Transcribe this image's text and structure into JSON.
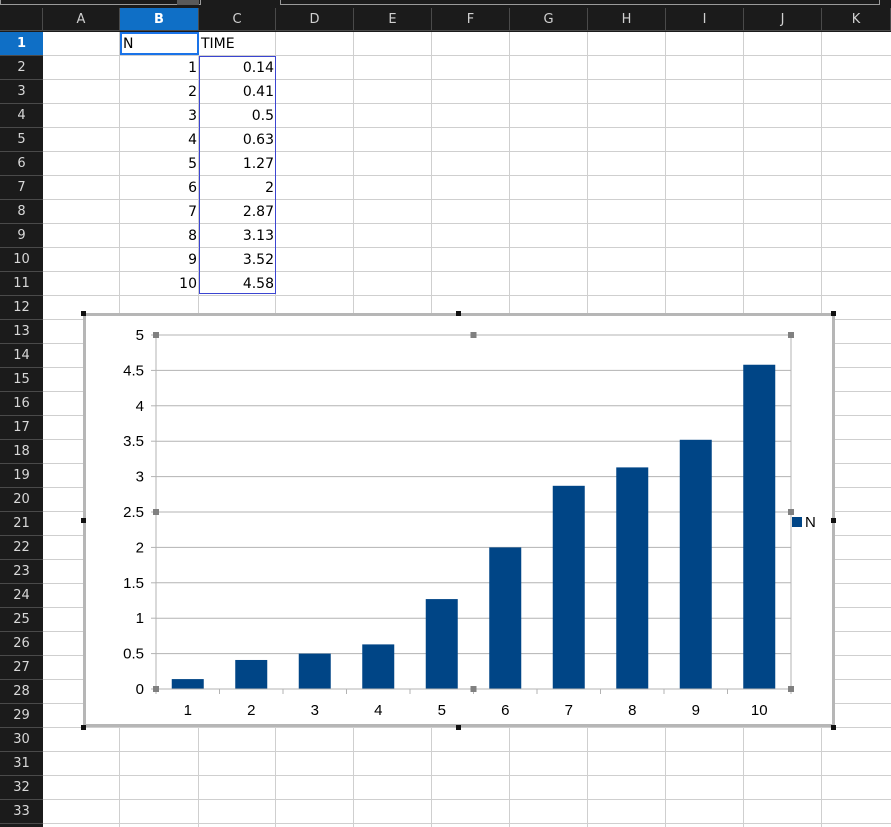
{
  "columns": [
    "A",
    "B",
    "C",
    "D",
    "E",
    "F",
    "G",
    "H",
    "I",
    "J",
    "K"
  ],
  "selected_column": "B",
  "rows": [
    "1",
    "2",
    "3",
    "4",
    "5",
    "6",
    "7",
    "8",
    "9",
    "10",
    "11",
    "12",
    "13",
    "14",
    "15",
    "16",
    "17",
    "18",
    "19",
    "20",
    "21",
    "22",
    "23",
    "24",
    "25",
    "26",
    "27",
    "28",
    "29",
    "30",
    "31",
    "32",
    "33"
  ],
  "selected_row": "1",
  "sheet": {
    "header_n": "N",
    "header_time": "TIME",
    "n_values": [
      "1",
      "2",
      "3",
      "4",
      "5",
      "6",
      "7",
      "8",
      "9",
      "10"
    ],
    "time_values": [
      "0.14",
      "0.41",
      "0.5",
      "0.63",
      "1.27",
      "2",
      "2.87",
      "3.13",
      "3.52",
      "4.58"
    ]
  },
  "chart_data": {
    "type": "bar",
    "categories": [
      "1",
      "2",
      "3",
      "4",
      "5",
      "6",
      "7",
      "8",
      "9",
      "10"
    ],
    "series": [
      {
        "name": "N",
        "values": [
          0.14,
          0.41,
          0.5,
          0.63,
          1.27,
          2,
          2.87,
          3.13,
          3.52,
          4.58
        ],
        "color": "#004586"
      }
    ],
    "yticks": [
      "0",
      "0.5",
      "1",
      "1.5",
      "2",
      "2.5",
      "3",
      "3.5",
      "4",
      "4.5",
      "5"
    ],
    "ylim": [
      0,
      5
    ],
    "grid": true,
    "legend": "right",
    "title": "",
    "xlabel": "",
    "ylabel": ""
  }
}
